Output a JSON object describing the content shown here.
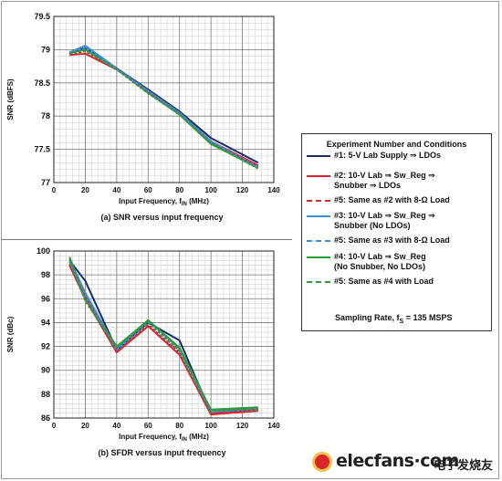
{
  "chart_data": [
    {
      "type": "line",
      "id": "snr",
      "caption": "(a) SNR versus input frequency",
      "xlabel": "Input Frequency, f",
      "xlabel_sub": "IN",
      "xlabel_unit": " (MHz)",
      "ylabel": "SNR (dBFS)",
      "xlim": [
        0,
        140
      ],
      "ylim": [
        77,
        79.5
      ],
      "xticks": [
        0,
        20,
        40,
        60,
        80,
        100,
        120,
        140
      ],
      "yticks": [
        77,
        77.5,
        78,
        78.5,
        79,
        79.5
      ],
      "ytick_labels": [
        "77",
        "77.5",
        "78",
        "78.5",
        "79",
        "79.5"
      ],
      "x": [
        10,
        20,
        40,
        60,
        80,
        100,
        130
      ],
      "series": [
        {
          "legend": 0,
          "values": [
            78.96,
            79.02,
            78.72,
            78.4,
            78.07,
            77.67,
            77.3
          ]
        },
        {
          "legend": 1,
          "values": [
            78.92,
            78.94,
            78.7,
            78.37,
            78.05,
            77.62,
            77.26
          ]
        },
        {
          "legend": 2,
          "values": [
            78.93,
            78.98,
            78.71,
            78.36,
            78.03,
            77.6,
            77.25
          ]
        },
        {
          "legend": 3,
          "values": [
            78.96,
            79.06,
            78.72,
            78.38,
            78.05,
            77.62,
            77.24
          ]
        },
        {
          "legend": 4,
          "values": [
            78.95,
            79.03,
            78.7,
            78.37,
            78.04,
            77.61,
            77.23
          ]
        },
        {
          "legend": 5,
          "values": [
            78.95,
            79.0,
            78.71,
            78.35,
            78.02,
            77.58,
            77.22
          ]
        },
        {
          "legend": 6,
          "values": [
            78.94,
            78.99,
            78.7,
            78.34,
            78.03,
            77.59,
            77.21
          ]
        }
      ]
    },
    {
      "type": "line",
      "id": "sfdr",
      "caption": "(b) SFDR versus input frequency",
      "xlabel": "Input Frequency, f",
      "xlabel_sub": "IN",
      "xlabel_unit": " (MHz)",
      "ylabel": "SNR (dBc)",
      "xlim": [
        0,
        140
      ],
      "ylim": [
        86,
        100
      ],
      "xticks": [
        0,
        20,
        40,
        60,
        80,
        100,
        120,
        140
      ],
      "yticks": [
        86,
        88,
        90,
        92,
        94,
        96,
        98,
        100
      ],
      "ytick_labels": [
        "86",
        "88",
        "90",
        "92",
        "94",
        "96",
        "98",
        "100"
      ],
      "x": [
        10,
        20,
        40,
        60,
        80,
        100,
        130
      ],
      "series": [
        {
          "legend": 0,
          "values": [
            99.2,
            97.5,
            91.7,
            94.0,
            92.5,
            86.4,
            86.7
          ]
        },
        {
          "legend": 1,
          "values": [
            98.8,
            96.0,
            91.5,
            93.7,
            91.3,
            86.3,
            86.6
          ]
        },
        {
          "legend": 2,
          "values": [
            98.9,
            96.2,
            91.6,
            93.8,
            91.5,
            86.4,
            86.7
          ]
        },
        {
          "legend": 3,
          "values": [
            99.3,
            96.5,
            91.8,
            94.2,
            91.8,
            86.6,
            86.8
          ]
        },
        {
          "legend": 4,
          "values": [
            99.1,
            96.3,
            91.7,
            94.0,
            91.6,
            86.5,
            86.7
          ]
        },
        {
          "legend": 5,
          "values": [
            99.5,
            96.0,
            92.0,
            94.2,
            91.9,
            86.7,
            86.9
          ]
        },
        {
          "legend": 6,
          "values": [
            99.3,
            95.8,
            91.9,
            94.1,
            91.7,
            86.6,
            86.8
          ]
        }
      ]
    }
  ],
  "legend": {
    "title": "Experiment Number and Conditions",
    "items": [
      {
        "label": "#1: 5-V Lab Supply ⇒ LDOs",
        "color": "#1b2a6b",
        "dash": false
      },
      {
        "label": "#2: 10-V Lab ⇒ Sw_Reg ⇒\nSnubber ⇒ LDOs",
        "color": "#d8262c",
        "dash": false
      },
      {
        "label": "#5: Same as #2 with 8-Ω Load",
        "color": "#d8262c",
        "dash": true
      },
      {
        "label": "#3: 10-V Lab ⇒ Sw_Reg ⇒\nSnubber (No LDOs)",
        "color": "#3b8fd4",
        "dash": false
      },
      {
        "label": "#5: Same as #3 with 8-Ω Load",
        "color": "#3b8fd4",
        "dash": true
      },
      {
        "label": "#4: 10-V Lab ⇒ Sw_Reg\n(No Snubber, No LDOs)",
        "color": "#2f9a3a",
        "dash": false
      },
      {
        "label": "#5: Same as #4 with Load",
        "color": "#2f9a3a",
        "dash": true
      }
    ],
    "footer_prefix": "Sampling Rate, f",
    "footer_sub": "S",
    "footer_suffix": " = 135 MSPS"
  },
  "watermark": {
    "text": "elecfans·com",
    "cn": "电子发烧友"
  }
}
